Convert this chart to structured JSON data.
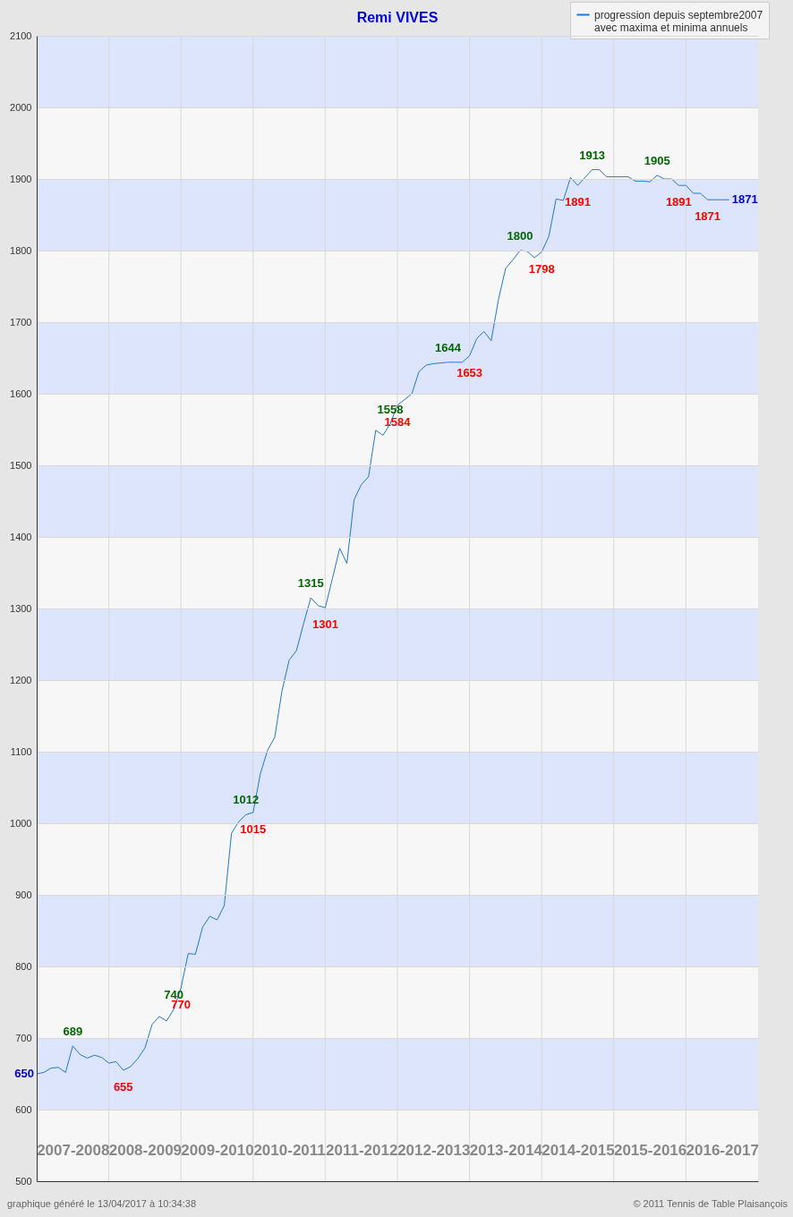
{
  "chart_data": {
    "type": "line",
    "title": "Remi VIVES",
    "categories": [
      null,
      null,
      null,
      null,
      null,
      "2007-2008",
      null,
      null,
      null,
      null,
      null,
      null,
      null,
      null,
      null,
      "2008-2009",
      null,
      null,
      null,
      null,
      null,
      null,
      null,
      null,
      null,
      "2009-2010",
      null,
      null,
      null,
      null,
      null,
      null,
      null,
      null,
      null,
      "2010-2011",
      null,
      null,
      null,
      null,
      null,
      null,
      null,
      null,
      null,
      "2011-2012",
      null,
      null,
      null,
      null,
      null,
      null,
      null,
      null,
      null,
      "2012-2013",
      null,
      null,
      null,
      null,
      null,
      null,
      null,
      null,
      null,
      "2013-2014",
      null,
      null,
      null,
      null,
      null,
      null,
      null,
      null,
      null,
      "2014-2015",
      null,
      null,
      null,
      null,
      null,
      null,
      null,
      null,
      null,
      "2015-2016",
      null,
      null,
      null,
      null,
      null,
      null,
      null,
      null,
      null,
      "2016-2017",
      null,
      null,
      null,
      null,
      null
    ],
    "ylim": [
      500,
      2100
    ],
    "yticks": [
      500,
      600,
      700,
      800,
      900,
      1000,
      1100,
      1200,
      1300,
      1400,
      1500,
      1600,
      1700,
      1800,
      1900,
      2000,
      2100
    ],
    "grid": true,
    "legend": "top right",
    "line_style": "solid",
    "bands": [
      {
        "axis": "y",
        "from": 600,
        "to": 700,
        "color": "#dde5fc"
      },
      {
        "axis": "y",
        "from": 800,
        "to": 900,
        "color": "#dde5fc"
      },
      {
        "axis": "y",
        "from": 1000,
        "to": 1100,
        "color": "#dde5fc"
      },
      {
        "axis": "y",
        "from": 1200,
        "to": 1300,
        "color": "#dde5fc"
      },
      {
        "axis": "y",
        "from": 1400,
        "to": 1500,
        "color": "#dde5fc"
      },
      {
        "axis": "y",
        "from": 1600,
        "to": 1700,
        "color": "#dde5fc"
      },
      {
        "axis": "y",
        "from": 1800,
        "to": 1900,
        "color": "#dde5fc"
      },
      {
        "axis": "y",
        "from": 2000,
        "to": 2100,
        "color": "#dde5fc"
      }
    ],
    "series": [
      {
        "name": "progression depuis septembre2007\navec maxima et minima annuels",
        "color": "#2277cc",
        "values": [
          650,
          652,
          658,
          659,
          652,
          689,
          677,
          672,
          676,
          673,
          665,
          667,
          655,
          660,
          671,
          686,
          719,
          730,
          724,
          740,
          770,
          818,
          817,
          855,
          870,
          865,
          885,
          986,
          1002,
          1012,
          1015,
          1069,
          1102,
          1120,
          1185,
          1228,
          1241,
          1279,
          1315,
          1304,
          1301,
          1342,
          1384,
          1363,
          1452,
          1473,
          1484,
          1549,
          1542,
          1558,
          1584,
          1592,
          1600,
          1631,
          1640,
          1642,
          1643,
          1644,
          1644,
          1644,
          1653,
          1677,
          1687,
          1674,
          1731,
          1775,
          1787,
          1800,
          1799,
          1790,
          1798,
          1820,
          1872,
          1870,
          1902,
          1891,
          1902,
          1913,
          1913,
          1903,
          1903,
          1903,
          1903,
          1897,
          1897,
          1896,
          1905,
          1900,
          1900,
          1891,
          1891,
          1880,
          1880,
          1871,
          1871,
          1871,
          1871,
          null,
          null,
          null,
          null
        ]
      }
    ],
    "annotations": [
      "650",
      {
        "text": "689",
        "y": 689
      },
      {
        "text": "655",
        "y": 655
      },
      {
        "text": "740",
        "y": 740
      },
      {
        "text": "770",
        "y": 770
      },
      {
        "text": "1012",
        "y": 1012
      },
      {
        "text": "1015",
        "y": 1015
      },
      {
        "text": "1315",
        "y": 1315
      },
      {
        "text": "1301",
        "y": 1301
      },
      {
        "text": "1558",
        "y": 1558
      },
      {
        "text": "1584",
        "y": 1584
      },
      {
        "text": "1644",
        "y": 1644
      },
      {
        "text": "1653",
        "y": 1653
      },
      {
        "text": "1800",
        "y": 1800
      },
      {
        "text": "1798",
        "y": 1798
      },
      {
        "text": "1913",
        "y": 1913
      },
      {
        "text": "1905",
        "y": 1905
      },
      {
        "text": "1891",
        "y": 1891
      },
      {
        "text": "1891",
        "y": 1891
      },
      "1871",
      "1871",
      "graphique généré le 13/04/2017 à 10:34:38",
      "© 2011 Tennis de Table Plaisançois"
    ]
  }
}
